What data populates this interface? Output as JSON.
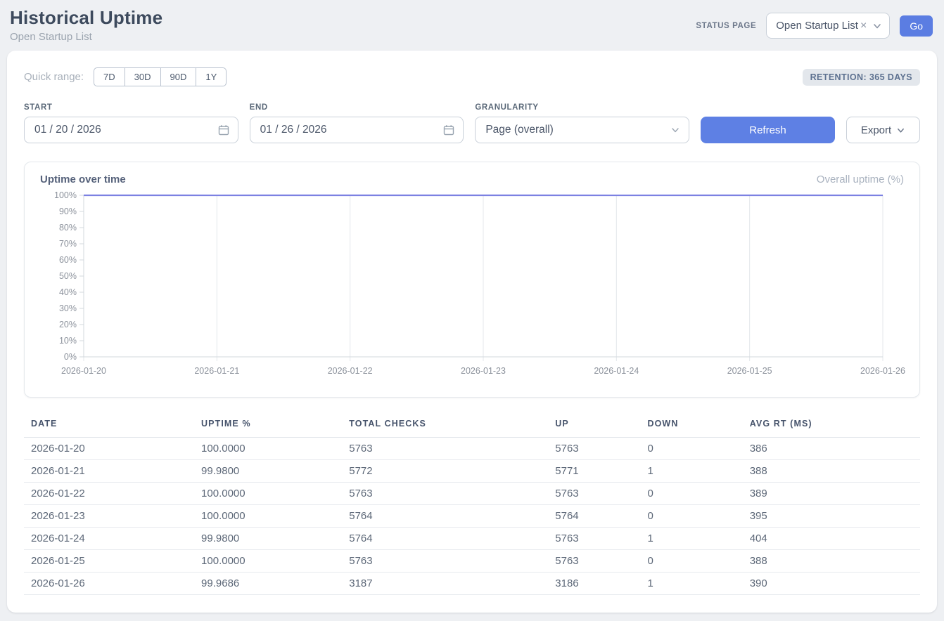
{
  "header": {
    "title": "Historical Uptime",
    "subtitle": "Open Startup List",
    "status_page_label": "STATUS PAGE",
    "status_page_value": "Open Startup List",
    "clear_glyph": "×",
    "go_label": "Go"
  },
  "filters": {
    "quick_range_label": "Quick range:",
    "quick_ranges": [
      "7D",
      "30D",
      "90D",
      "1Y"
    ],
    "retention_badge": "RETENTION: 365 DAYS",
    "start_label": "START",
    "start_value": "01 / 20 / 2026",
    "end_label": "END",
    "end_value": "01 / 26 / 2026",
    "granularity_label": "GRANULARITY",
    "granularity_value": "Page (overall)",
    "refresh_label": "Refresh",
    "export_label": "Export"
  },
  "chart": {
    "title": "Uptime over time",
    "legend": "Overall uptime (%)"
  },
  "chart_data": {
    "type": "line",
    "x": [
      "2026-01-20",
      "2026-01-21",
      "2026-01-22",
      "2026-01-23",
      "2026-01-24",
      "2026-01-25",
      "2026-01-26"
    ],
    "series": [
      {
        "name": "Overall uptime (%)",
        "values": [
          100.0,
          99.98,
          100.0,
          100.0,
          99.98,
          100.0,
          99.9686
        ]
      }
    ],
    "title": "Uptime over time",
    "xlabel": "",
    "ylabel": "",
    "ylim": [
      0,
      100
    ],
    "y_tick_step": 10,
    "y_tick_suffix": "%",
    "grid": "vertical",
    "legend_position": "top-right",
    "line_color": "#7c81e2",
    "grid_color": "#e4e7eb",
    "axis_color": "#d3d8de",
    "tick_label_color": "#8b919b"
  },
  "table": {
    "columns": [
      "DATE",
      "UPTIME %",
      "TOTAL CHECKS",
      "UP",
      "DOWN",
      "AVG RT (MS)"
    ],
    "col_widths": [
      "19%",
      "16.5%",
      "23%",
      "10.3%",
      "11.4%",
      "19.8%"
    ],
    "rows": [
      [
        "2026-01-20",
        "100.0000",
        "5763",
        "5763",
        "0",
        "386"
      ],
      [
        "2026-01-21",
        "99.9800",
        "5772",
        "5771",
        "1",
        "388"
      ],
      [
        "2026-01-22",
        "100.0000",
        "5763",
        "5763",
        "0",
        "389"
      ],
      [
        "2026-01-23",
        "100.0000",
        "5764",
        "5764",
        "0",
        "395"
      ],
      [
        "2026-01-24",
        "99.9800",
        "5764",
        "5763",
        "1",
        "404"
      ],
      [
        "2026-01-25",
        "100.0000",
        "5763",
        "5763",
        "0",
        "388"
      ],
      [
        "2026-01-26",
        "99.9686",
        "3187",
        "3186",
        "1",
        "390"
      ]
    ]
  },
  "colors": {
    "accent_blue": "#5b7de2",
    "line_indigo": "#7c81e2",
    "page_bg": "#eef0f3",
    "badge_bg": "#e3e7ec",
    "heading": "#3d4a5d"
  }
}
